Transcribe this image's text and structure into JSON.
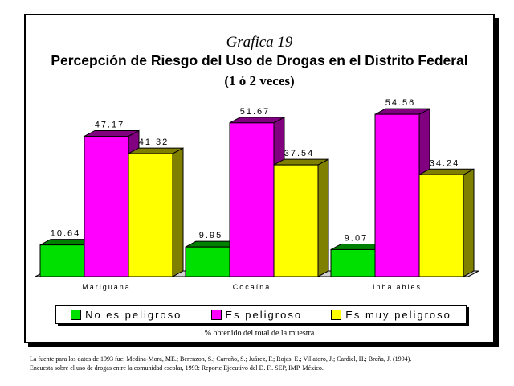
{
  "titles": {
    "line1": "Grafica 19",
    "line2": "Percepción de Riesgo del Uso de Drogas en el Distrito Federal",
    "line3": "(1 ó 2 veces)"
  },
  "chart_data": {
    "type": "bar",
    "categories": [
      "Mariguana",
      "Cocaína",
      "Inhalables"
    ],
    "series": [
      {
        "name": "No es peligroso",
        "color": "#00e000",
        "side_color": "#008000",
        "values": [
          10.64,
          9.95,
          9.07
        ],
        "labels": [
          "10.64",
          "9.95",
          "9.07"
        ]
      },
      {
        "name": "Es peligroso",
        "color": "#ff00ff",
        "side_color": "#800080",
        "values": [
          47.17,
          51.67,
          54.56
        ],
        "labels": [
          "47.17",
          "51.67",
          "54.56"
        ]
      },
      {
        "name": "Es muy peligroso",
        "color": "#ffff00",
        "side_color": "#808000",
        "values": [
          41.32,
          37.54,
          34.24
        ],
        "labels": [
          "41.32",
          "37.54",
          "34.24"
        ]
      }
    ],
    "style": "3d",
    "grid": false,
    "legend_placement": "bottom"
  },
  "note": "% obtenido del total de la muestra",
  "source": {
    "line1": "La fuente para los datos de 1993 fue: Medina-Mora, ME.; Berenzon, S.; Carreño, S.; Juárez, F.; Rojas, E.; Villatoro, J.; Cardiel, H.; Breña, J. (1994).",
    "line2": "Encuesta sobre el uso de drogas entre la comunidad escolar, 1993: Reporte Ejecutivo del D. F.. SEP, IMP. México."
  }
}
